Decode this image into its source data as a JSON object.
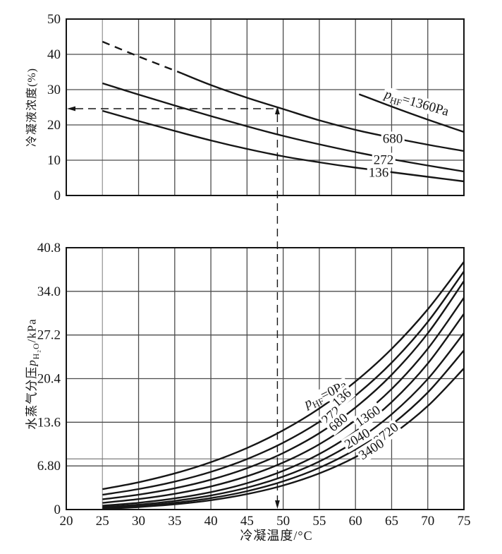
{
  "figure": {
    "kind": "scanned two-panel line chart (HF condensation diagram)",
    "background": "#ffffff"
  },
  "colors": {
    "curve": "#161616",
    "frame": "#141414",
    "grid": "#4c4c4c",
    "grid_light": "#9b9b9b",
    "text": "#161616"
  },
  "axes": {
    "x": {
      "label": "冷凝温度/°C",
      "tick_labels": [
        "20",
        "25",
        "30",
        "35",
        "40",
        "45",
        "50",
        "55",
        "60",
        "65",
        "70",
        "75"
      ]
    },
    "top_y": {
      "label": "冷凝液浓度(%)",
      "tick_labels": [
        "0",
        "10",
        "20",
        "30",
        "40",
        "50"
      ]
    },
    "bottom_y": {
      "label_prefix": "水蒸气分压",
      "label_p": "p",
      "label_sub": "H₂O",
      "label_suffix": "/kPa",
      "tick_labels": [
        "0",
        "6.80",
        "13.6",
        "20.4",
        "27.2",
        "34.0",
        "40.8"
      ]
    }
  },
  "curve_labels": {
    "top": {
      "p": "p",
      "hf_sub": "HF",
      "c1360_rest": "=1360Pa",
      "c680": "680",
      "c272": "272",
      "c136": "136"
    },
    "bottom": {
      "p": "p",
      "hf_sub": "HF",
      "c0_rest": "=0Pa",
      "c136": "136",
      "c272": "272",
      "c680": "680",
      "c1360": "1360",
      "c2040": "2040",
      "c2720": "2720",
      "c3400": "3400"
    }
  },
  "chart_data": [
    {
      "type": "line",
      "position": "top",
      "title": "",
      "xlabel": "冷凝温度/°C",
      "ylabel": "冷凝液浓度(%)",
      "xlim": [
        20,
        75
      ],
      "ylim": [
        0,
        50
      ],
      "x_ticks": [
        20,
        25,
        30,
        35,
        40,
        45,
        50,
        55,
        60,
        65,
        70,
        75
      ],
      "y_ticks": [
        0,
        10,
        20,
        30,
        40,
        50
      ],
      "grid": true,
      "series": [
        {
          "name": "p_HF=1360Pa",
          "style": "solid",
          "x": [
            60.5,
            65,
            70,
            75
          ],
          "y": [
            28.7,
            25.2,
            21.5,
            18.0
          ]
        },
        {
          "name": "p_HF=680Pa",
          "style": "dashed-then-solid",
          "dash_until_x": 36,
          "x": [
            25,
            30,
            35,
            36,
            40,
            45,
            50,
            55,
            60,
            65,
            70,
            75
          ],
          "y": [
            43.6,
            39.4,
            35.4,
            34.6,
            31.3,
            27.7,
            24.5,
            21.3,
            18.6,
            16.4,
            14.4,
            12.6
          ]
        },
        {
          "name": "p_HF=272Pa",
          "style": "solid",
          "x": [
            25,
            30,
            35,
            40,
            45,
            50,
            55,
            60,
            65,
            70,
            75
          ],
          "y": [
            31.8,
            28.6,
            25.5,
            22.5,
            19.6,
            16.9,
            14.5,
            12.3,
            10.3,
            8.5,
            6.8
          ]
        },
        {
          "name": "p_HF=136Pa",
          "style": "solid",
          "x": [
            25,
            30,
            35,
            40,
            45,
            50,
            55,
            60,
            65,
            70,
            75
          ],
          "y": [
            24.0,
            21.1,
            18.3,
            15.6,
            13.2,
            11.1,
            9.4,
            7.9,
            6.6,
            5.3,
            4.0
          ]
        }
      ],
      "annotation_guide": {
        "temperature_c": 49.2,
        "concentration_pct": 24.6,
        "style": "dashed arrows"
      }
    },
    {
      "type": "line",
      "position": "bottom",
      "title": "",
      "xlabel": "冷凝温度/°C",
      "ylabel": "水蒸气分压p_H2O/kPa",
      "xlim": [
        20,
        75
      ],
      "ylim": [
        0,
        40.8
      ],
      "x_ticks": [
        20,
        25,
        30,
        35,
        40,
        45,
        50,
        55,
        60,
        65,
        70,
        75
      ],
      "y_ticks": [
        0,
        6.8,
        13.6,
        20.4,
        27.2,
        34.0,
        40.8
      ],
      "extra_hline": 7.9,
      "grid": true,
      "series": [
        {
          "name": "p_HF=0Pa",
          "x": [
            25,
            30,
            35,
            40,
            45,
            50,
            55,
            60,
            65,
            70,
            75
          ],
          "y": [
            3.17,
            4.25,
            5.63,
            7.38,
            9.59,
            12.35,
            15.76,
            19.95,
            25.04,
            31.2,
            38.6
          ]
        },
        {
          "name": "p_HF=136Pa",
          "x": [
            25,
            30,
            35,
            40,
            45,
            50,
            55,
            60,
            65,
            70,
            75
          ],
          "y": [
            2.3,
            3.19,
            4.35,
            5.87,
            7.86,
            10.41,
            13.66,
            17.76,
            22.89,
            29.24,
            37.1
          ]
        },
        {
          "name": "p_HF=272Pa",
          "x": [
            25,
            30,
            35,
            40,
            45,
            50,
            55,
            60,
            65,
            70,
            75
          ],
          "y": [
            1.6,
            2.32,
            3.31,
            4.65,
            6.44,
            8.81,
            11.9,
            15.9,
            21.0,
            27.46,
            35.6
          ]
        },
        {
          "name": "p_HF=680Pa",
          "x": [
            25,
            30,
            35,
            40,
            45,
            50,
            55,
            60,
            65,
            70,
            75
          ],
          "y": [
            1.05,
            1.63,
            2.45,
            3.6,
            5.19,
            7.32,
            10.17,
            13.93,
            18.78,
            25.06,
            33.0
          ]
        },
        {
          "name": "p_HF=1360Pa",
          "x": [
            25,
            30,
            35,
            40,
            45,
            50,
            55,
            60,
            65,
            70,
            75
          ],
          "y": [
            0.6,
            1.06,
            1.74,
            2.72,
            4.11,
            6.04,
            8.65,
            12.15,
            16.75,
            22.75,
            30.5
          ]
        },
        {
          "name": "p_HF=2040Pa",
          "x": [
            25,
            30,
            35,
            40,
            45,
            50,
            55,
            60,
            65,
            70,
            75
          ],
          "y": [
            0.38,
            0.76,
            1.34,
            2.19,
            3.41,
            5.14,
            7.49,
            10.65,
            14.85,
            20.34,
            27.5
          ]
        },
        {
          "name": "p_HF=2720Pa",
          "x": [
            25,
            30,
            35,
            40,
            45,
            50,
            55,
            60,
            65,
            70,
            75
          ],
          "y": [
            0.22,
            0.54,
            1.04,
            1.78,
            2.86,
            4.4,
            6.51,
            9.38,
            13.22,
            18.25,
            24.8
          ]
        },
        {
          "name": "p_HF=3400Pa",
          "x": [
            25,
            30,
            35,
            40,
            45,
            50,
            55,
            60,
            65,
            70,
            75
          ],
          "y": [
            0.12,
            0.39,
            0.81,
            1.45,
            2.41,
            3.75,
            5.63,
            8.18,
            11.62,
            16.13,
            22.0
          ]
        }
      ]
    }
  ]
}
